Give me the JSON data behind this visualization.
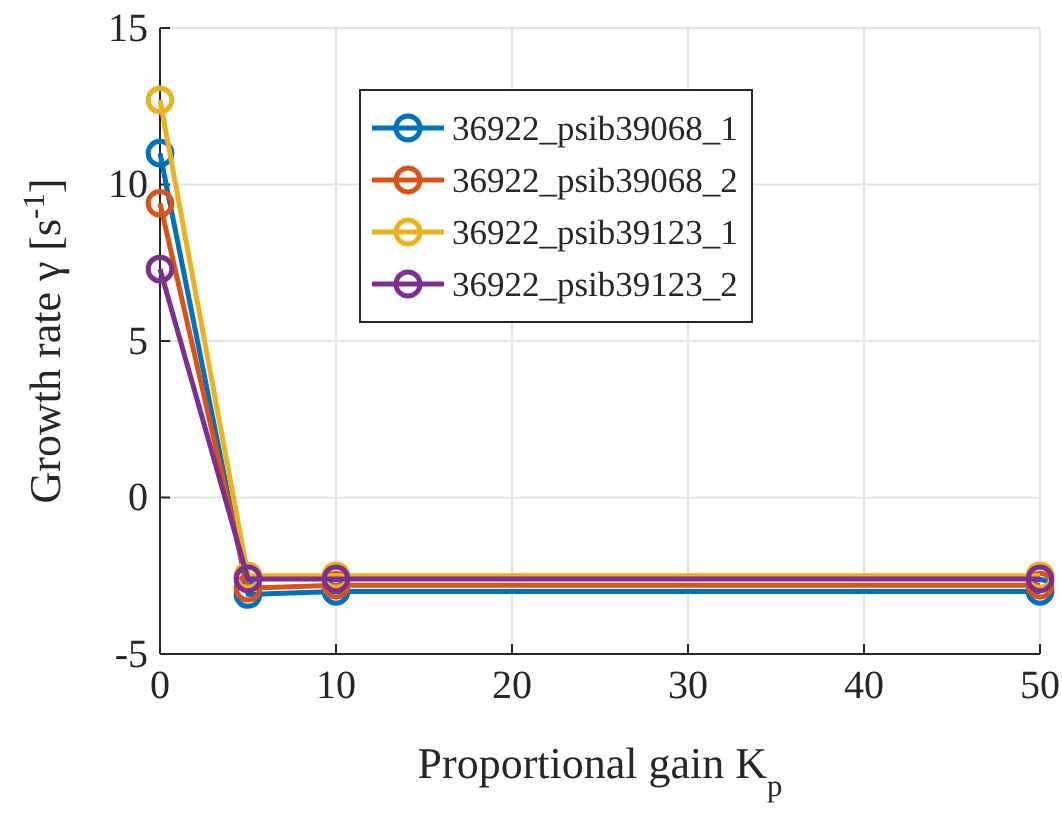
{
  "chart_data": {
    "type": "line",
    "xlabel": "Proportional gain K$_{p}$",
    "ylabel": "Growth rate γ [s$^{-1}$]",
    "x": [
      0,
      5,
      10,
      50
    ],
    "series": [
      {
        "name": "36922_psib39068_1",
        "color": "#0072bd",
        "values": [
          11,
          -3.1,
          -3.0,
          -3.0
        ]
      },
      {
        "name": "36922_psib39068_2",
        "color": "#d95319",
        "values": [
          9.4,
          -2.9,
          -2.8,
          -2.8
        ]
      },
      {
        "name": "36922_psib39123_1",
        "color": "#edb120",
        "values": [
          12.7,
          -2.5,
          -2.5,
          -2.5
        ]
      },
      {
        "name": "36922_psib39123_2",
        "color": "#7e2f8e",
        "values": [
          7.3,
          -2.6,
          -2.6,
          -2.6
        ]
      }
    ],
    "xlim": [
      0,
      50
    ],
    "ylim": [
      -5,
      15
    ],
    "xticks": [
      0,
      10,
      20,
      30,
      40,
      50
    ],
    "yticks": [
      -5,
      0,
      5,
      10,
      15
    ],
    "grid": true,
    "legend": "top",
    "marker": "circle",
    "line_style": "solid"
  }
}
